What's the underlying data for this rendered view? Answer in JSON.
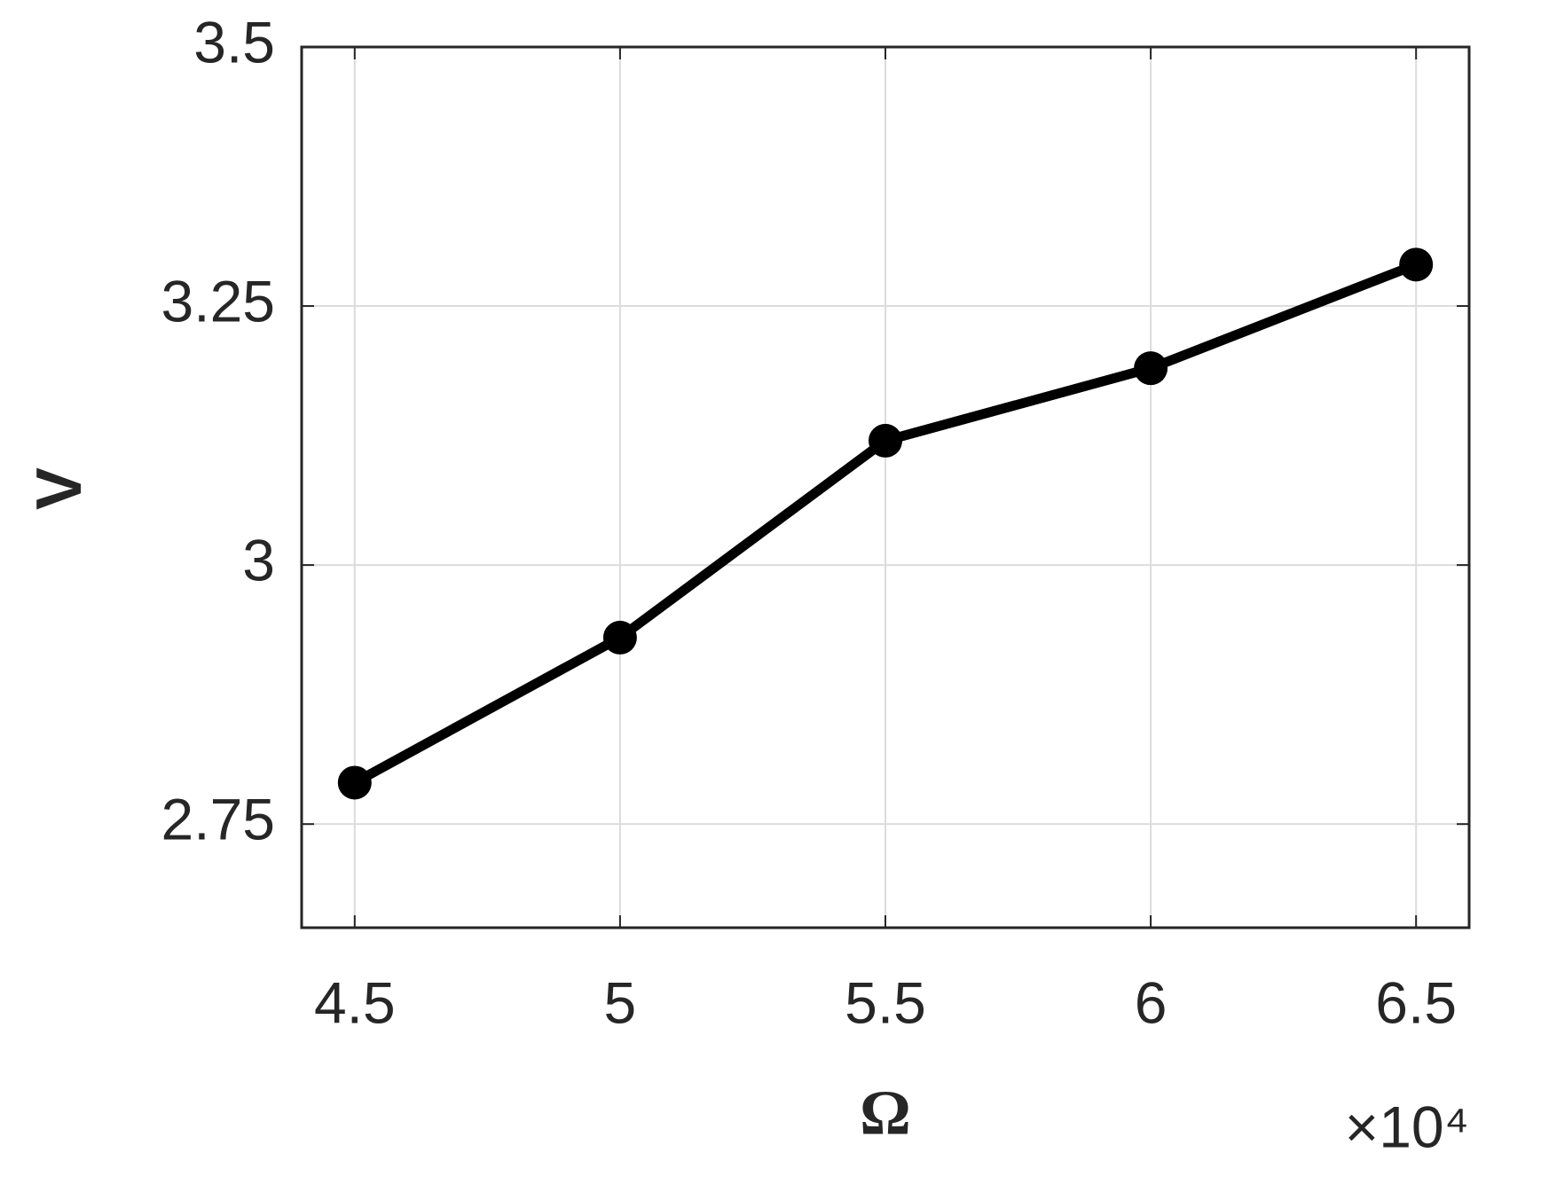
{
  "chart_data": {
    "type": "line",
    "x": [
      4.5,
      5,
      5.5,
      6,
      6.5
    ],
    "series": [
      {
        "color": "#000000",
        "values": [
          2.79,
          2.93,
          3.12,
          3.19,
          3.29
        ]
      }
    ],
    "xlim": [
      4.4,
      6.6
    ],
    "xticks": [
      4.5,
      5,
      5.5,
      6,
      6.5
    ],
    "ylim": [
      2.65,
      3.5
    ],
    "yticks": [
      2.75,
      3,
      3.25,
      3.5
    ],
    "xlabel": "Ω",
    "ylabel": "V",
    "x_multiplier": "×10⁴",
    "grid": true
  }
}
